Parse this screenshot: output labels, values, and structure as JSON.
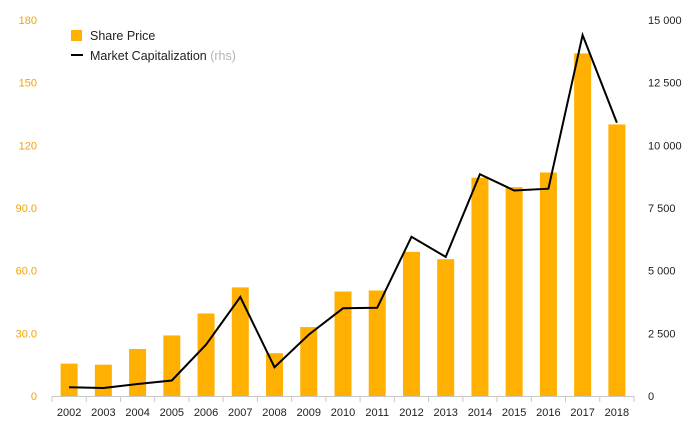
{
  "chart_data": {
    "type": "bar+line",
    "categories": [
      "2002",
      "2003",
      "2004",
      "2005",
      "2006",
      "2007",
      "2008",
      "2009",
      "2010",
      "2011",
      "2012",
      "2013",
      "2014",
      "2015",
      "2016",
      "2017",
      "2018"
    ],
    "series": [
      {
        "name": "Share Price",
        "type": "bar",
        "axis": "left",
        "values": [
          15.5,
          15,
          22.5,
          29,
          39.5,
          52,
          20.5,
          33,
          50,
          50.5,
          69,
          65.5,
          104.5,
          100,
          107,
          164,
          130
        ]
      },
      {
        "name": "Market Capitalization",
        "axis_note": "(rhs)",
        "type": "line",
        "axis": "right",
        "values": [
          350,
          320,
          480,
          620,
          2050,
          3950,
          1150,
          2450,
          3500,
          3520,
          6350,
          5550,
          8850,
          8200,
          8270,
          14400,
          10900
        ]
      }
    ],
    "left_axis": {
      "ylim": [
        0,
        180
      ],
      "ticks": [
        "0",
        "30.0",
        "60.0",
        "90.0",
        "120",
        "150",
        "180"
      ],
      "tick_values": [
        0,
        30,
        60,
        90,
        120,
        150,
        180
      ]
    },
    "right_axis": {
      "ylim": [
        0,
        15000
      ],
      "ticks": [
        "0",
        "2 500",
        "5 000",
        "7 500",
        "10 000",
        "12 500",
        "15 000"
      ],
      "tick_values": [
        0,
        2500,
        5000,
        7500,
        10000,
        12500,
        15000
      ]
    },
    "legend": {
      "position": "top-left",
      "items": [
        {
          "label": "Share Price",
          "note": ""
        },
        {
          "label": "Market Capitalization",
          "note": "(rhs)"
        }
      ]
    },
    "colors": {
      "bar": "#FFB000",
      "line": "#000000",
      "left_tick": "#F0A500",
      "right_tick": "#222222",
      "axis_line": "#C8C8C8"
    }
  }
}
